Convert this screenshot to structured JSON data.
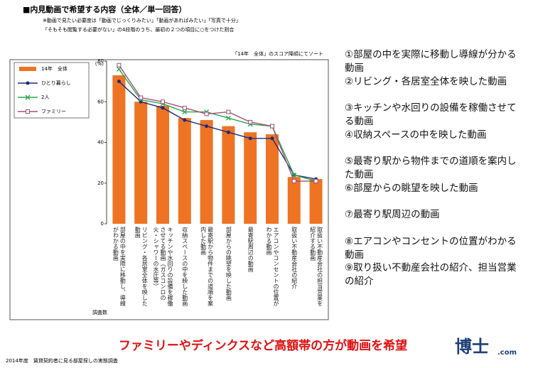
{
  "header": {
    "title": "■内見動画で希望する内容（全体／単一回答）",
    "notes": [
      "※動画で見たい必要度は「動画でじっくりみたい」「動画があればみたい」「写真で十分」",
      "「そもそも閲覧する必要がない」の4段階のうち、最初の２つの項目に○をつけた割合"
    ]
  },
  "chart_data": {
    "type": "bar_line",
    "sort_note": "「14年　全体」のスコア降順にてソート",
    "y_unit": "(%)",
    "base_label": "調査数",
    "categories": [
      "部屋の中を実際に移動し、導線がわかる動画",
      "リビング・各居室全体を映した動画",
      "キッチンや水回りの設備を稼働させてる動画（ガスコンロの火・シャワーの水圧等）",
      "収納スペースの中を映した動画",
      "最寄駅から物件までの道順を案内した動画",
      "部屋からの眺望を映した動画",
      "最寄駅周辺の動画",
      "エアコンやコンセントの位置がわかる動画",
      "取扱い不動産会社の紹介",
      "取扱い不動産会社の担当営業を紹介する動画"
    ],
    "series": [
      {
        "name": "14年　全体",
        "type": "bar",
        "color": "#ee7424",
        "values": [
          73,
          60,
          58,
          52,
          51,
          48,
          45,
          44,
          23,
          22
        ]
      },
      {
        "name": "ひとり暮らし",
        "type": "line",
        "marker": "circle",
        "color": "#1f2a7a",
        "values": [
          70,
          60,
          57,
          51,
          48,
          45,
          42,
          42,
          24,
          22
        ]
      },
      {
        "name": "2人",
        "type": "line",
        "marker": "cross",
        "color": "#2aa54a",
        "values": [
          76,
          61,
          59,
          55,
          55,
          52,
          49,
          48,
          24,
          21
        ]
      },
      {
        "name": "ファミリー",
        "type": "line",
        "marker": "square",
        "color": "#a0507a",
        "values": [
          78,
          62,
          60,
          57,
          54,
          55,
          50,
          48,
          21,
          21
        ]
      }
    ],
    "ylim": [
      0,
      80
    ],
    "yticks": [
      0,
      20,
      40,
      60,
      80
    ],
    "legend": "top-left"
  },
  "list": {
    "items": [
      "①部屋の中を実際に移動し導線が分かる動画",
      "②リビング・各居室全体を映した動画",
      "③キッチンや水回りの設備を稼働させてる動画",
      "④収納スペースの中を映した動画",
      "⑤最寄り駅から物件までの道順を案内した動画",
      "⑥部屋からの眺望を映した動画",
      "⑦最寄り駅周辺の動画",
      "⑧エアコンやコンセントの位置がわかる動画",
      "⑨取り扱い不動産会社の紹介、担当営業の紹介"
    ]
  },
  "headline": "ファミリーやディンクスなど高額帯の方が動画を希望",
  "footer": "2014年度　賃貸契約者に見る部屋探しの実態調査",
  "logo": {
    "main": "博士",
    "sub": ".com"
  }
}
